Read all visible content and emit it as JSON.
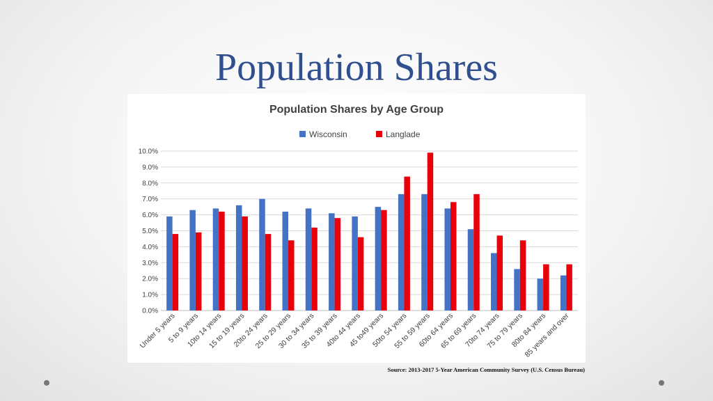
{
  "slide": {
    "title": "Population Shares",
    "source": "Source: 2013-2017 5-Year American Community Survey (U.S. Census Bureau)"
  },
  "chart_data": {
    "type": "bar",
    "title": "Population Shares by Age Group",
    "xlabel": "",
    "ylabel": "",
    "ylim": [
      0,
      10
    ],
    "ytick_format": "percent_1dp",
    "yticks": [
      0,
      1,
      2,
      3,
      4,
      5,
      6,
      7,
      8,
      9,
      10
    ],
    "grid": true,
    "legend": "top-center",
    "categories": [
      "Under 5 years",
      "5 to 9 years",
      "10to 14 years",
      "15 to 19 years",
      "20to 24 years",
      "25 to 29 years",
      "30 to 34 years",
      "35 to 39 years",
      "40to 44 years",
      "45 to49 years",
      "50to 54 years",
      "55 to 59 years",
      "60to 64 years",
      "65 to 69 years",
      "70to 74 years",
      "75 to 79 years",
      "80to 84 years",
      "85 years and over"
    ],
    "series": [
      {
        "name": "Wisconsin",
        "color": "#4472c4",
        "values": [
          5.9,
          6.3,
          6.4,
          6.6,
          7.0,
          6.2,
          6.4,
          6.1,
          5.9,
          6.5,
          7.3,
          7.3,
          6.4,
          5.1,
          3.6,
          2.6,
          2.0,
          2.2
        ]
      },
      {
        "name": "Langlade",
        "color": "#e8000b",
        "values": [
          4.8,
          4.9,
          6.2,
          5.9,
          4.8,
          4.4,
          5.2,
          5.8,
          4.6,
          6.3,
          8.4,
          9.9,
          6.8,
          7.3,
          4.7,
          4.4,
          2.9,
          2.9
        ]
      }
    ]
  }
}
